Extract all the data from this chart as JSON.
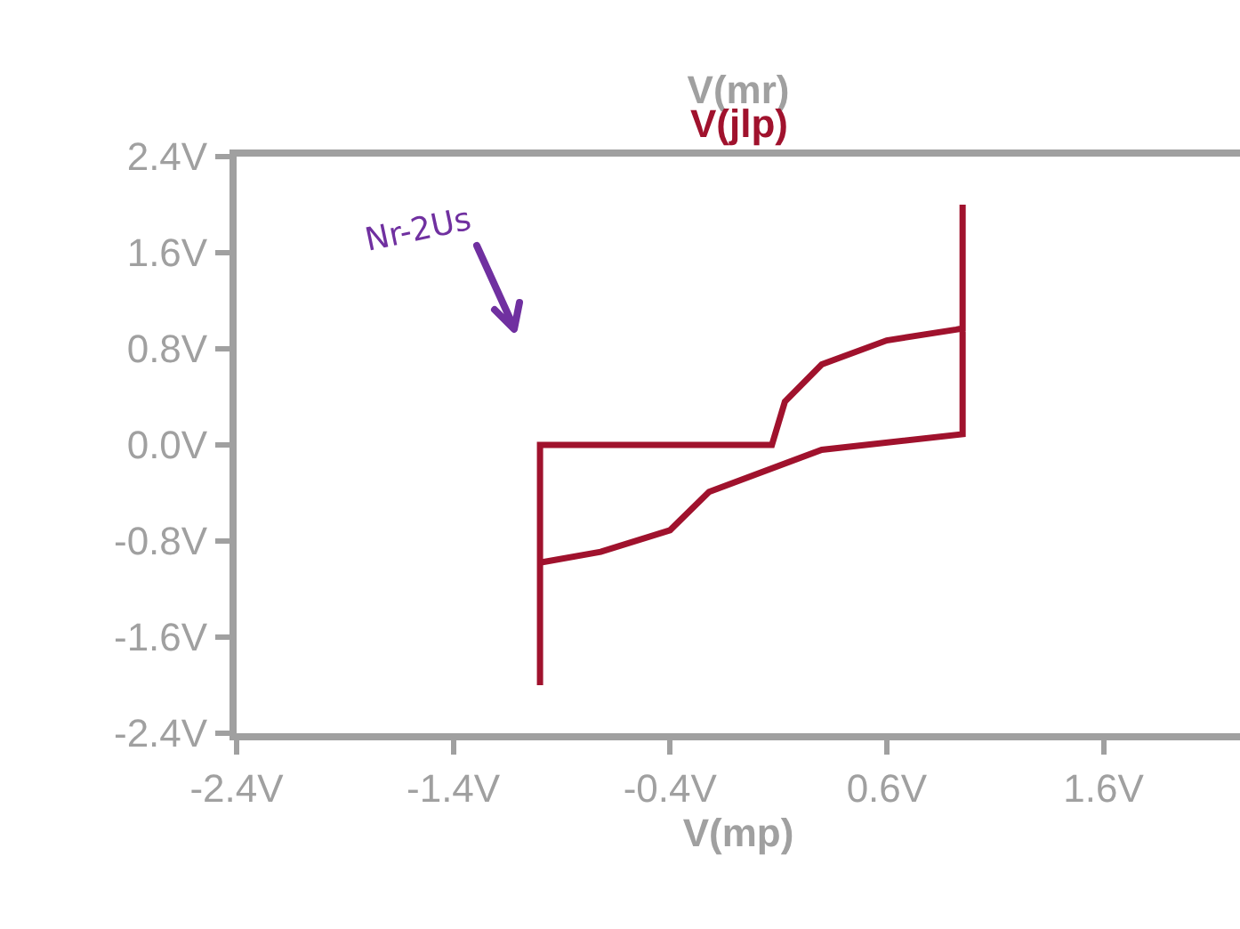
{
  "chart_data": {
    "type": "line",
    "title": "V(mr)",
    "xlabel": "V(mp)",
    "series": [
      {
        "name": "V(jlp)",
        "color": "#a0122d",
        "x": [
          -1.0,
          -1.0,
          0.07,
          0.13,
          0.3,
          0.6,
          0.92,
          0.95,
          0.95,
          0.95,
          0.3,
          -0.22,
          -0.4,
          -0.72,
          -1.0
        ],
        "values": [
          -2.0,
          0.0,
          0.0,
          0.36,
          0.67,
          0.87,
          0.96,
          0.97,
          2.0,
          0.09,
          -0.04,
          -0.39,
          -0.71,
          -0.89,
          -0.98
        ]
      }
    ],
    "xlim": [
      -2.4,
      2.23
    ],
    "ylim": [
      -2.4,
      2.4
    ],
    "xticks": [
      {
        "value": -2.4,
        "label": "-2.4V"
      },
      {
        "value": -1.4,
        "label": "-1.4V"
      },
      {
        "value": -0.4,
        "label": "-0.4V"
      },
      {
        "value": 0.6,
        "label": "0.6V"
      },
      {
        "value": 1.6,
        "label": "1.6V"
      }
    ],
    "yticks": [
      {
        "value": 2.4,
        "label": "2.4V"
      },
      {
        "value": 1.6,
        "label": "1.6V"
      },
      {
        "value": 0.8,
        "label": "0.8V"
      },
      {
        "value": 0.0,
        "label": "0.0V"
      },
      {
        "value": -0.8,
        "label": "-0.8V"
      },
      {
        "value": -1.6,
        "label": "-1.6V"
      },
      {
        "value": -2.4,
        "label": "-2.4V"
      }
    ],
    "annotations": [
      "Nr-2Us"
    ],
    "grid": false,
    "legend": false,
    "marker": "none",
    "line_style": "solid"
  }
}
